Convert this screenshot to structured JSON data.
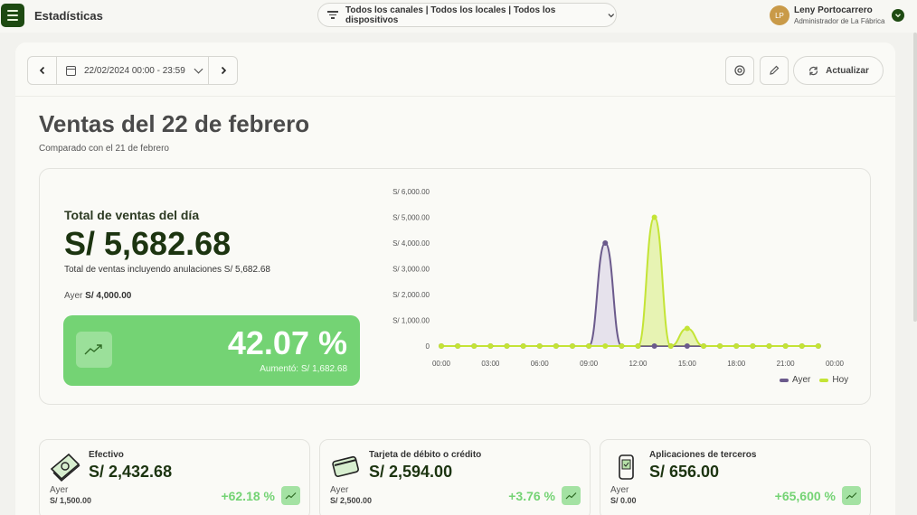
{
  "app": {
    "title": "Estadísticas"
  },
  "filters": {
    "label": "Todos los canales | Todos los locales | Todos los dispositivos"
  },
  "user": {
    "initials": "LP",
    "name": "Leny Portocarrero",
    "role": "Administrador de La Fábrica"
  },
  "toolbar": {
    "date_range": "22/02/2024 00:00 - 23:59",
    "refresh_label": "Actualizar"
  },
  "page": {
    "title": "Ventas del 22 de febrero",
    "subtitle": "Comparado con el 21 de febrero"
  },
  "summary": {
    "total_label": "Total de ventas del día",
    "total_value": "S/ 5,682.68",
    "total_note": "Total de ventas incluyendo anulaciones S/ 5,682.68",
    "yesterday_label": "Ayer",
    "yesterday_value": "S/ 4,000.00",
    "increase_pct": "42.07 %",
    "increase_amount": "Aumentó: S/ 1,682.68"
  },
  "colors": {
    "ayer": "#6b5a8c",
    "hoy": "#c4e436",
    "accent_green": "#74d374",
    "dark_green": "#1e4a12"
  },
  "chart_data": {
    "type": "area",
    "y_tick_labels": [
      "0",
      "S/ 1,000.00",
      "S/ 2,000.00",
      "S/ 3,000.00",
      "S/ 4,000.00",
      "S/ 5,000.00",
      "S/ 6,000.00"
    ],
    "x_tick_labels": [
      "00:00",
      "03:00",
      "06:00",
      "09:00",
      "12:00",
      "15:00",
      "18:00",
      "21:00",
      "00:00"
    ],
    "ylim": [
      0,
      6000
    ],
    "x_hours": [
      0,
      1,
      2,
      3,
      4,
      5,
      6,
      7,
      8,
      9,
      10,
      11,
      12,
      13,
      14,
      15,
      16,
      17,
      18,
      19,
      20,
      21,
      22,
      23
    ],
    "series": [
      {
        "name": "Ayer",
        "values": [
          0,
          0,
          0,
          0,
          0,
          0,
          0,
          0,
          0,
          0,
          4000,
          0,
          0,
          0,
          0,
          0,
          0,
          0,
          0,
          0,
          0,
          0,
          0,
          0
        ]
      },
      {
        "name": "Hoy",
        "values": [
          0,
          0,
          0,
          0,
          0,
          0,
          0,
          0,
          0,
          0,
          0,
          0,
          0,
          5000,
          0,
          682.68,
          0,
          0,
          0,
          0,
          0,
          0,
          0,
          0
        ]
      }
    ],
    "legend_position": "bottom-right"
  },
  "cards": [
    {
      "icon": "cash-icon",
      "title": "Efectivo",
      "value": "S/ 2,432.68",
      "yesterday_label": "Ayer",
      "yesterday_value": "S/ 1,500.00",
      "change": "+62.18 %"
    },
    {
      "icon": "credit-card-icon",
      "title": "Tarjeta de débito o crédito",
      "value": "S/ 2,594.00",
      "yesterday_label": "Ayer",
      "yesterday_value": "S/ 2,500.00",
      "change": "+3.76 %"
    },
    {
      "icon": "mobile-app-icon",
      "title": "Aplicaciones de terceros",
      "value": "S/ 656.00",
      "yesterday_label": "Ayer",
      "yesterday_value": "S/ 0.00",
      "change": "+65,600 %"
    }
  ]
}
